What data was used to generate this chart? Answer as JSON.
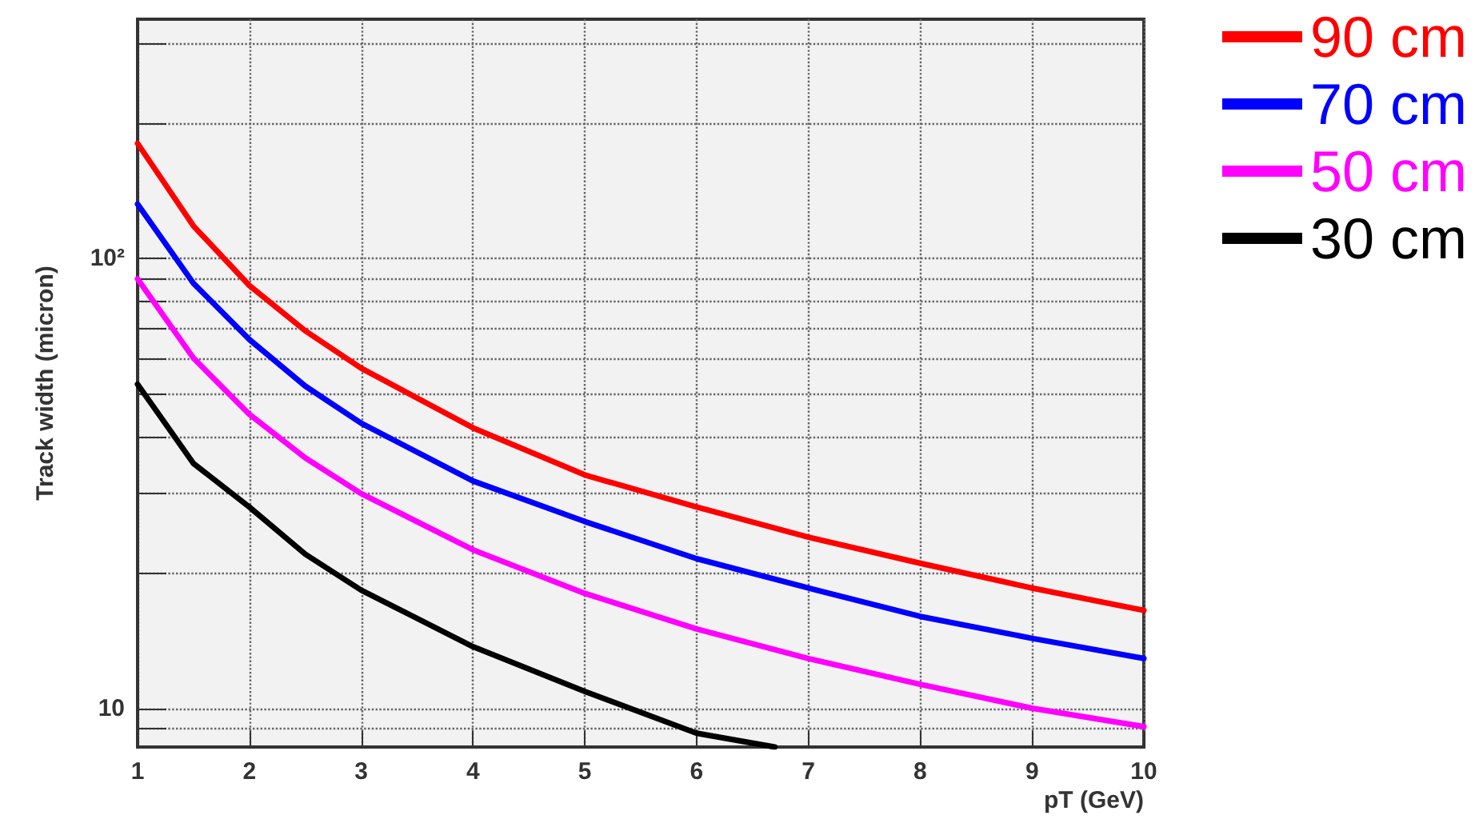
{
  "chart_data": {
    "type": "line",
    "xlabel": "pT (GeV)",
    "ylabel": "Track width (micron)",
    "log": "y",
    "grid": true,
    "line_style": "solid",
    "marker": "none",
    "legend": "top right",
    "xlim": [
      1,
      10
    ],
    "xticks": [
      1,
      2,
      3,
      4,
      5,
      6,
      7,
      8,
      9,
      10
    ],
    "ylim": [
      8.2,
      340
    ],
    "yticks": [
      {
        "value": 9,
        "label": null
      },
      10,
      {
        "value": 20,
        "label": null
      },
      {
        "value": 30,
        "label": null
      },
      {
        "value": 40,
        "label": null
      },
      {
        "value": 50,
        "label": null
      },
      {
        "value": 60,
        "label": null
      },
      {
        "value": 70,
        "label": null
      },
      {
        "value": 80,
        "label": null
      },
      {
        "value": 90,
        "label": null
      },
      {
        "value": 100,
        "label": "10²"
      },
      {
        "value": 200,
        "label": null
      },
      {
        "value": 300,
        "label": null
      }
    ],
    "x": [
      1,
      1.5,
      2,
      2.5,
      3,
      4,
      5,
      6,
      7,
      8,
      9,
      10
    ],
    "series": [
      {
        "name": "90 cm",
        "color": "#ff0000",
        "values": [
          180,
          118,
          87,
          69,
          57,
          42,
          33,
          28,
          24,
          21,
          18.5,
          16.5
        ]
      },
      {
        "name": "70 cm",
        "color": "#0000ff",
        "values": [
          132,
          88,
          66,
          52,
          43,
          32,
          26,
          21.5,
          18.5,
          16,
          14.3,
          12.9
        ]
      },
      {
        "name": "50 cm",
        "color": "#ff00ff",
        "values": [
          90,
          60,
          45,
          36,
          30,
          22.5,
          18,
          15,
          12.9,
          11.3,
          10,
          9.1
        ]
      },
      {
        "name": "30 cm",
        "color": "#000000",
        "x": [
          1,
          1.5,
          2,
          2.5,
          3,
          4,
          5,
          6,
          6.7
        ],
        "values": [
          52.5,
          35,
          28,
          22,
          18.3,
          13.7,
          10.9,
          8.8,
          8.2
        ]
      }
    ]
  }
}
